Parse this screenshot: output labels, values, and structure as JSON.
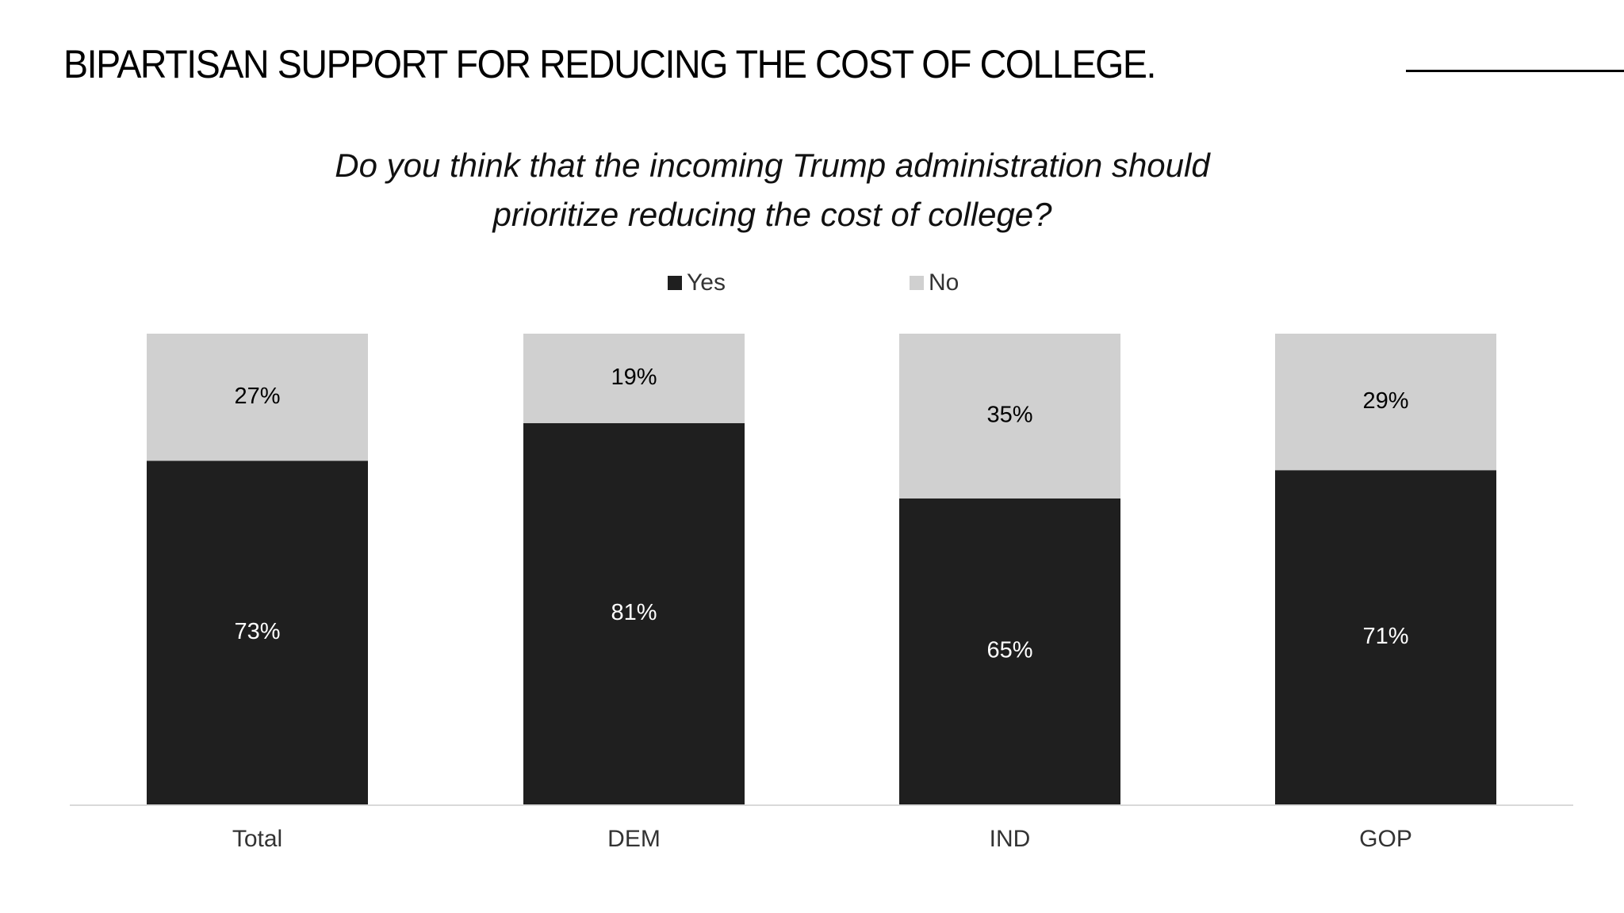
{
  "title": "BIPARTISAN SUPPORT FOR REDUCING THE COST OF COLLEGE.",
  "chart_data": {
    "type": "bar",
    "stacked": true,
    "subtitle_lines": [
      "Do you think that the incoming Trump administration should",
      "prioritize reducing the cost of college?"
    ],
    "categories": [
      "Total",
      "DEM",
      "IND",
      "GOP"
    ],
    "series": [
      {
        "name": "Yes",
        "values": [
          73,
          81,
          65,
          71
        ],
        "labels": [
          "73%",
          "81%",
          "65%",
          "71%"
        ],
        "color": "#1f1f1f",
        "label_color": "#ffffff"
      },
      {
        "name": "No",
        "values": [
          27,
          19,
          35,
          29
        ],
        "labels": [
          "27%",
          "19%",
          "35%",
          "29%"
        ],
        "color": "#d0d0d0",
        "label_color": "#000000"
      }
    ],
    "ylim": [
      0,
      100
    ],
    "grid": false,
    "legend": "top-center",
    "xlabel": "",
    "ylabel": ""
  }
}
